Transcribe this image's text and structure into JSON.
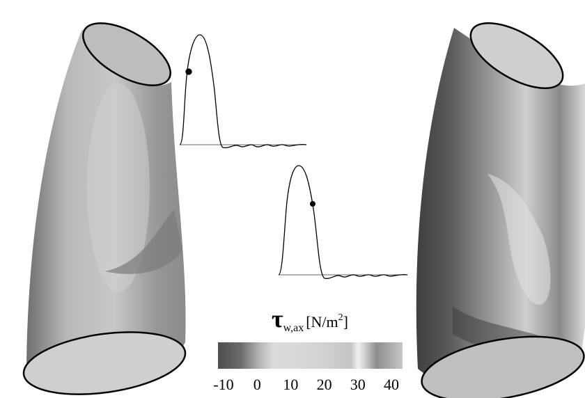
{
  "colorbar": {
    "label": {
      "symbol": "τ",
      "subscript": "w,ax",
      "unit": "[N/m",
      "superscript": "2",
      "unit_end": "]"
    },
    "lim": [
      -10,
      40
    ],
    "ticks": [
      -10,
      0,
      10,
      20,
      30,
      40
    ]
  }
}
